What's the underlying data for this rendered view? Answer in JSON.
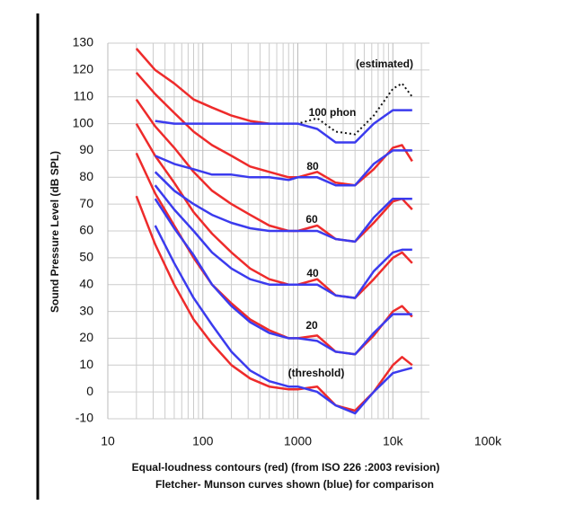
{
  "chart_data": {
    "type": "line",
    "ylabel": "Sound Pressure Level (dB SPL)",
    "xlabel": [
      "Equal-loudness contours (red) (from ISO 226 :2003 revision)",
      "Fletcher- Munson curves shown (blue) for comparison"
    ],
    "annotations": [
      "(estimated)",
      "100 phon",
      "80",
      "60",
      "40",
      "20",
      "(threshold)"
    ],
    "xscale": "log",
    "grid": true,
    "xlim": [
      10,
      100000
    ],
    "xticks": [
      10,
      100,
      1000,
      {
        "value": 10000,
        "label": "10k"
      },
      {
        "value": 100000,
        "label": "100k"
      }
    ],
    "ylim": [
      -10,
      130
    ],
    "yticks": [
      -10,
      0,
      10,
      20,
      30,
      40,
      50,
      60,
      70,
      80,
      90,
      100,
      110,
      120,
      130
    ],
    "x": [
      20,
      31.5,
      50,
      80,
      125,
      200,
      315,
      500,
      800,
      1000,
      1600,
      2500,
      4000,
      6300,
      10000,
      12500,
      16000
    ],
    "series": [
      {
        "color": "#ee2b2b",
        "values": [
          73,
          55,
          40,
          27,
          18,
          10,
          5,
          2,
          1,
          1,
          2,
          -5,
          -7,
          0,
          10,
          13,
          10
        ]
      },
      {
        "color": "#ee2b2b",
        "values": [
          89,
          74,
          62,
          50,
          40,
          33,
          27,
          23,
          20,
          20,
          21,
          15,
          14,
          21,
          30,
          32,
          28
        ]
      },
      {
        "color": "#ee2b2b",
        "values": [
          100,
          88,
          78,
          67,
          59,
          52,
          46,
          42,
          40,
          40,
          42,
          36,
          35,
          42,
          50,
          52,
          48
        ]
      },
      {
        "color": "#ee2b2b",
        "values": [
          109,
          99,
          91,
          82,
          75,
          70,
          66,
          62,
          60,
          60,
          62,
          57,
          56,
          63,
          71,
          72,
          68
        ]
      },
      {
        "color": "#ee2b2b",
        "values": [
          119,
          111,
          104,
          97,
          92,
          88,
          84,
          82,
          80,
          80,
          82,
          78,
          77,
          83,
          91,
          92,
          86
        ]
      },
      {
        "color": "#ee2b2b",
        "values": [
          128,
          120,
          115,
          109,
          106,
          103,
          101,
          100,
          null,
          null,
          null,
          null,
          null,
          null,
          null,
          null,
          null
        ]
      },
      {
        "color": "#111111",
        "dash": true,
        "values": [
          null,
          null,
          null,
          null,
          null,
          null,
          null,
          100,
          100,
          100,
          102,
          97,
          96,
          103,
          113,
          115,
          110
        ]
      },
      {
        "color": "#3b3bee",
        "values": [
          null,
          62,
          48,
          35,
          25,
          15,
          8,
          4,
          2,
          2,
          0,
          -5,
          -8,
          0,
          7,
          8,
          9
        ]
      },
      {
        "color": "#3b3bee",
        "values": [
          null,
          72,
          61,
          51,
          40,
          32,
          26,
          22,
          20,
          20,
          19,
          15,
          14,
          22,
          29,
          29,
          29
        ]
      },
      {
        "color": "#3b3bee",
        "values": [
          null,
          77,
          68,
          60,
          52,
          46,
          42,
          40,
          40,
          40,
          40,
          36,
          35,
          45,
          52,
          53,
          53
        ]
      },
      {
        "color": "#3b3bee",
        "values": [
          null,
          82,
          75,
          70,
          66,
          63,
          61,
          60,
          60,
          60,
          60,
          57,
          56,
          65,
          72,
          72,
          72
        ]
      },
      {
        "color": "#3b3bee",
        "values": [
          null,
          88,
          85,
          83,
          81,
          81,
          80,
          80,
          79,
          80,
          80,
          77,
          77,
          85,
          90,
          90,
          90
        ]
      },
      {
        "color": "#3b3bee",
        "values": [
          null,
          101,
          100,
          100,
          100,
          100,
          100,
          100,
          100,
          100,
          98,
          93,
          93,
          100,
          105,
          105,
          105
        ]
      }
    ]
  }
}
